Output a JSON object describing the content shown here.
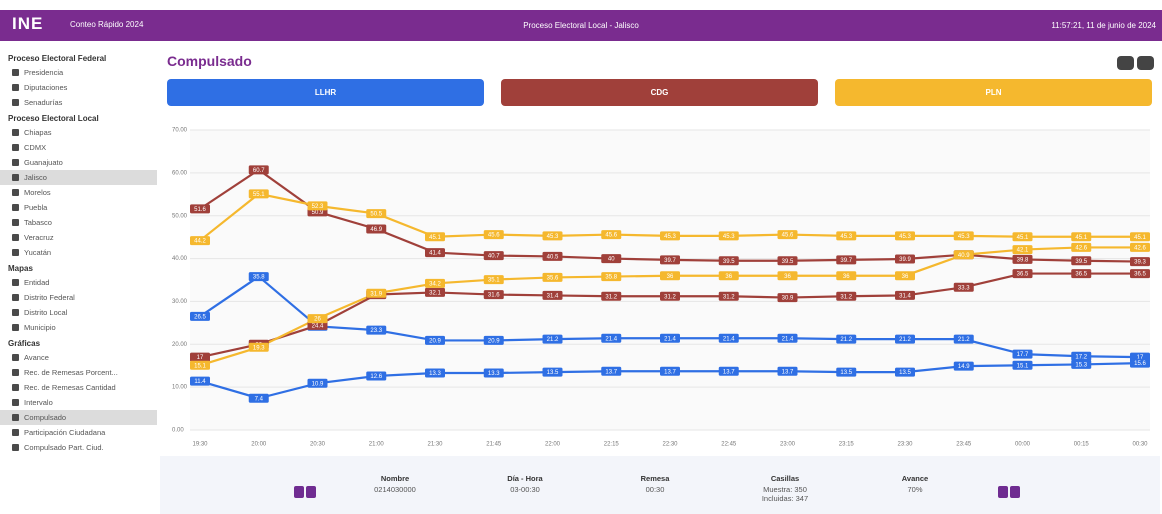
{
  "header": {
    "logo": "INE",
    "subtitle": "Conteo Rápido 2024",
    "center": "Proceso Electoral Local - Jalisco",
    "datetime": "11:57:21, 11 de junio de 2024"
  },
  "sidebar": [
    {
      "title": "Proceso Electoral Federal",
      "items": [
        "Presidencia",
        "Diputaciones",
        "Senadurías"
      ]
    },
    {
      "title": "Proceso Electoral Local",
      "items": [
        "Chiapas",
        "CDMX",
        "Guanajuato",
        "Jalisco",
        "Morelos",
        "Puebla",
        "Tabasco",
        "Veracruz",
        "Yucatán"
      ]
    },
    {
      "title": "Mapas",
      "items": [
        "Entidad",
        "Distrito Federal",
        "Distrito Local",
        "Municipio"
      ]
    },
    {
      "title": "Gráficas",
      "items": [
        "Avance",
        "Rec. de Remesas Porcent...",
        "Rec. de Remesas Cantidad",
        "Intervalo",
        "Compulsado",
        "Participación Ciudadana",
        "Compulsado Part. Ciud."
      ]
    }
  ],
  "selected": [
    "Jalisco",
    "Compulsado"
  ],
  "page_title": "Compulsado",
  "chart_data": {
    "type": "line",
    "categories": [
      "19:30",
      "20:00",
      "20:30",
      "21:00",
      "21:30",
      "21:45",
      "22:00",
      "22:15",
      "22:30",
      "22:45",
      "23:00",
      "23:15",
      "23:30",
      "23:45",
      "00:00",
      "00:15",
      "00:30"
    ],
    "series": [
      {
        "name": "LLHR",
        "color": "#2f6fe4",
        "upper": [
          26.5,
          35.8,
          24.2,
          23.3,
          20.9,
          20.9,
          21.2,
          21.4,
          21.4,
          21.4,
          21.4,
          21.2,
          21.2,
          21.2,
          17.7,
          17.2,
          17.0
        ],
        "lower": [
          11.4,
          7.4,
          10.9,
          12.6,
          13.3,
          13.3,
          13.5,
          13.7,
          13.7,
          13.7,
          13.7,
          13.5,
          13.5,
          14.9,
          15.1,
          15.3,
          15.6
        ]
      },
      {
        "name": "CDG",
        "color": "#a0403a",
        "upper": [
          51.6,
          60.7,
          50.9,
          46.9,
          41.4,
          40.7,
          40.5,
          40.0,
          39.7,
          39.5,
          39.5,
          39.7,
          39.9,
          40.9,
          39.8,
          39.5,
          39.3
        ],
        "lower": [
          17.0,
          20.0,
          24.4,
          31.6,
          32.1,
          31.6,
          31.4,
          31.2,
          31.2,
          31.2,
          30.9,
          31.2,
          31.4,
          33.3,
          36.5,
          36.5,
          36.5
        ]
      },
      {
        "name": "PLN",
        "color": "#f5b82e",
        "upper": [
          44.2,
          55.1,
          52.3,
          50.5,
          45.1,
          45.6,
          45.3,
          45.6,
          45.3,
          45.3,
          45.6,
          45.3,
          45.3,
          45.3,
          45.1,
          45.1,
          45.1
        ],
        "lower": [
          15.1,
          19.3,
          26.0,
          31.9,
          34.2,
          35.1,
          35.6,
          35.8,
          36.0,
          36.0,
          36.0,
          36.0,
          36.0,
          40.9,
          42.1,
          42.6,
          42.6
        ]
      }
    ],
    "ylim": [
      0,
      70
    ],
    "yticks": [
      {
        "value": 0,
        "label": "0.00"
      },
      {
        "value": 10,
        "label": "10.00"
      },
      {
        "value": 20,
        "label": "20.00"
      },
      {
        "value": 30,
        "label": "30.00"
      },
      {
        "value": 40,
        "label": "40.00"
      },
      {
        "value": 50,
        "label": "50.00"
      },
      {
        "value": 60,
        "label": "60.00"
      },
      {
        "value": 70,
        "label": "70.00"
      }
    ],
    "grid": true
  },
  "panel": [
    {
      "label": "Nombre",
      "lines": [
        "0214030000"
      ]
    },
    {
      "label": "Día - Hora",
      "lines": [
        "03-00:30"
      ]
    },
    {
      "label": "Remesa",
      "lines": [
        "00:30"
      ]
    },
    {
      "label": "Casillas",
      "lines": [
        "Muestra: 350",
        "Incluidas: 347"
      ]
    },
    {
      "label": "Avance",
      "lines": [
        "70%"
      ]
    }
  ]
}
